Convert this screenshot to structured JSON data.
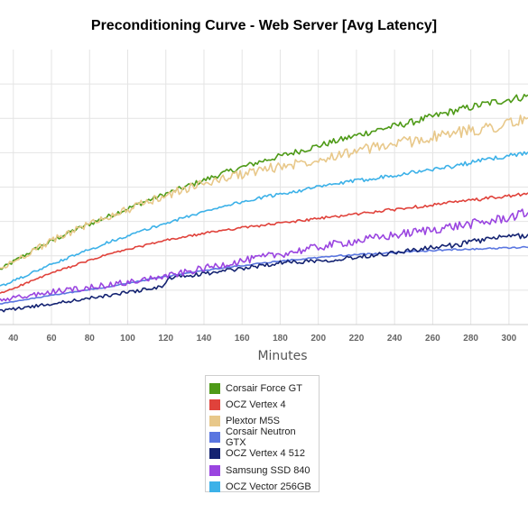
{
  "chart_data": {
    "type": "line",
    "title": "Preconditioning Curve - Web Server [Avg Latency]",
    "xlabel": "Minutes",
    "ylabel": "",
    "x_ticks": [
      40,
      60,
      80,
      100,
      120,
      140,
      160,
      180,
      200,
      220,
      240,
      260,
      280,
      300
    ],
    "xlim": [
      33,
      310
    ],
    "ylim": [
      0,
      8
    ],
    "y_grid_levels": [
      1,
      2,
      3,
      4,
      5,
      6,
      7
    ],
    "grid": true,
    "legend_position": "bottom",
    "series": [
      {
        "name": "Corsair Force GT",
        "color": "#4e9a17",
        "noise": 0.07,
        "points": [
          [
            33,
            1.6
          ],
          [
            50,
            2.15
          ],
          [
            70,
            2.7
          ],
          [
            90,
            3.15
          ],
          [
            110,
            3.6
          ],
          [
            130,
            4.0
          ],
          [
            150,
            4.4
          ],
          [
            170,
            4.75
          ],
          [
            190,
            5.05
          ],
          [
            210,
            5.35
          ],
          [
            230,
            5.65
          ],
          [
            250,
            5.9
          ],
          [
            270,
            6.2
          ],
          [
            290,
            6.45
          ],
          [
            310,
            6.65
          ]
        ]
      },
      {
        "name": "OCZ Vertex 4",
        "color": "#e0423b",
        "noise": 0.03,
        "points": [
          [
            33,
            0.9
          ],
          [
            60,
            1.5
          ],
          [
            90,
            2.05
          ],
          [
            120,
            2.45
          ],
          [
            150,
            2.75
          ],
          [
            180,
            2.95
          ],
          [
            210,
            3.15
          ],
          [
            240,
            3.35
          ],
          [
            270,
            3.55
          ],
          [
            290,
            3.68
          ],
          [
            310,
            3.8
          ]
        ]
      },
      {
        "name": "Plextor M5S",
        "color": "#e8c88a",
        "noise": 0.12,
        "points": [
          [
            33,
            1.6
          ],
          [
            50,
            2.15
          ],
          [
            70,
            2.7
          ],
          [
            90,
            3.15
          ],
          [
            110,
            3.55
          ],
          [
            130,
            3.95
          ],
          [
            150,
            4.25
          ],
          [
            170,
            4.5
          ],
          [
            190,
            4.7
          ],
          [
            210,
            4.95
          ],
          [
            230,
            5.15
          ],
          [
            250,
            5.35
          ],
          [
            270,
            5.55
          ],
          [
            290,
            5.75
          ],
          [
            310,
            5.95
          ]
        ]
      },
      {
        "name": "Corsair Neutron GTX",
        "color": "#5a76e0",
        "noise": 0.015,
        "points": [
          [
            33,
            0.6
          ],
          [
            60,
            0.85
          ],
          [
            90,
            1.1
          ],
          [
            120,
            1.4
          ],
          [
            150,
            1.65
          ],
          [
            180,
            1.85
          ],
          [
            210,
            2.0
          ],
          [
            240,
            2.1
          ],
          [
            270,
            2.18
          ],
          [
            310,
            2.25
          ]
        ]
      },
      {
        "name": "OCZ Vertex 4 512",
        "color": "#142372",
        "noise": 0.05,
        "points": [
          [
            33,
            0.4
          ],
          [
            60,
            0.6
          ],
          [
            90,
            0.85
          ],
          [
            118,
            1.1
          ],
          [
            122,
            1.35
          ],
          [
            150,
            1.55
          ],
          [
            180,
            1.8
          ],
          [
            210,
            1.9
          ],
          [
            240,
            2.1
          ],
          [
            270,
            2.3
          ],
          [
            290,
            2.5
          ],
          [
            310,
            2.6
          ]
        ]
      },
      {
        "name": "Samsung SSD 840",
        "color": "#9a45e0",
        "noise": 0.09,
        "points": [
          [
            33,
            0.7
          ],
          [
            60,
            0.95
          ],
          [
            90,
            1.15
          ],
          [
            120,
            1.4
          ],
          [
            150,
            1.75
          ],
          [
            180,
            2.05
          ],
          [
            210,
            2.35
          ],
          [
            240,
            2.6
          ],
          [
            270,
            2.85
          ],
          [
            290,
            3.0
          ],
          [
            310,
            3.25
          ]
        ]
      },
      {
        "name": "OCZ Vector 256GB",
        "color": "#3cb1e8",
        "noise": 0.04,
        "points": [
          [
            33,
            1.1
          ],
          [
            60,
            1.75
          ],
          [
            90,
            2.4
          ],
          [
            120,
            2.95
          ],
          [
            150,
            3.45
          ],
          [
            180,
            3.8
          ],
          [
            210,
            4.1
          ],
          [
            240,
            4.35
          ],
          [
            270,
            4.6
          ],
          [
            290,
            4.82
          ],
          [
            310,
            5.0
          ]
        ]
      }
    ]
  }
}
